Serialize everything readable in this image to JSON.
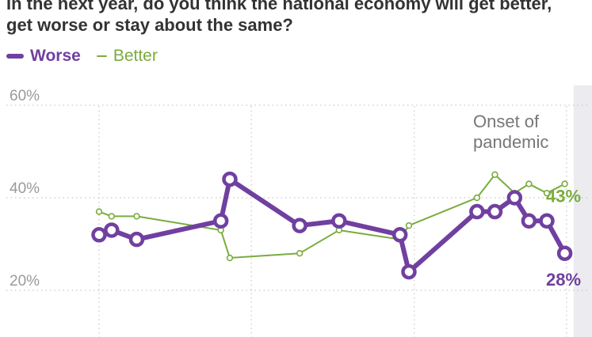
{
  "title_lines": [
    "In the next year, do you think the national economy will get better,",
    "get worse or stay about the same?"
  ],
  "colors": {
    "worse": "#7040a0",
    "better": "#7aac3e",
    "shade": "#ececf0",
    "grid": "#c8c8c8",
    "axis_text": "#9a9a9a",
    "annotation": "#777777"
  },
  "chart_data": {
    "type": "line",
    "ylim": [
      15,
      60
    ],
    "yticks": [
      20,
      40,
      60
    ],
    "ytick_labels": [
      "20%",
      "40%",
      "60%"
    ],
    "grid": true,
    "legend_position": "top-left",
    "shaded_region": {
      "x_start": 26.5,
      "x_end": 33.5,
      "label_lines": [
        "Onset of",
        "pandemic"
      ]
    },
    "series": [
      {
        "name": "Worse",
        "color": "#7040a0",
        "x": [
          0,
          0.7,
          2.1,
          6.8,
          7.3,
          11.2,
          13.4,
          16.8,
          17.3,
          21.1,
          22.1,
          23.2,
          24.0,
          25.0,
          26.0
        ],
        "values": [
          32,
          33,
          31,
          35,
          44,
          34,
          35,
          32,
          24,
          37,
          37,
          40,
          35,
          35,
          28
        ],
        "end_label": "28%"
      },
      {
        "name": "Better",
        "color": "#7aac3e",
        "x": [
          0,
          0.7,
          2.1,
          6.8,
          7.3,
          11.2,
          13.4,
          16.8,
          17.3,
          21.1,
          22.1,
          23.2,
          24.0,
          25.0,
          26.0
        ],
        "values": [
          37,
          36,
          36,
          33,
          27,
          28,
          33,
          31,
          34,
          40,
          45,
          41,
          43,
          41,
          43
        ],
        "end_label": "43%"
      }
    ]
  }
}
